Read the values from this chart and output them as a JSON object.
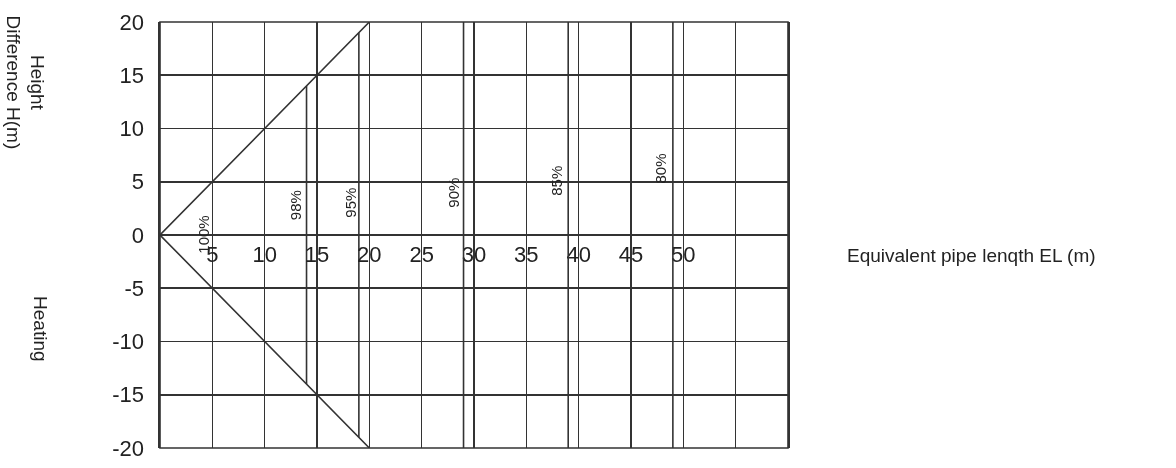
{
  "chart_data": {
    "type": "line",
    "xlabel": "Equivalent pipe lenqth EL (m)",
    "ylabel": "Height\nDifference H(m)",
    "xlim": [
      0,
      60
    ],
    "ylim": [
      -20,
      20
    ],
    "xticks": [
      {
        "value": 0,
        "label": null
      },
      5,
      10,
      15,
      20,
      25,
      30,
      35,
      40,
      45,
      50,
      {
        "value": 55,
        "label": null
      },
      {
        "value": 60,
        "label": null
      }
    ],
    "yticks": [
      -20,
      -15,
      -10,
      -5,
      0,
      5,
      10,
      15,
      20
    ],
    "grid": true,
    "marker": "none",
    "line_style": "solid",
    "series": [
      {
        "color": "#333333",
        "x": [
          20,
          0,
          20
        ],
        "values": [
          20,
          0,
          -20
        ]
      },
      {
        "color": "#333333",
        "x": [
          14,
          14
        ],
        "values": [
          -14,
          14
        ]
      },
      {
        "color": "#333333",
        "x": [
          19,
          19
        ],
        "values": [
          -19,
          19
        ]
      }
    ],
    "ref_lines": [
      {
        "axis": "x",
        "value": 29,
        "color": "#333333"
      },
      {
        "axis": "x",
        "value": 39,
        "color": "#333333"
      },
      {
        "axis": "x",
        "value": 49,
        "color": "#333333"
      }
    ],
    "annotations": [
      "Heating",
      "100%",
      "98%",
      "95%",
      "90%",
      "85%",
      "80%"
    ]
  }
}
